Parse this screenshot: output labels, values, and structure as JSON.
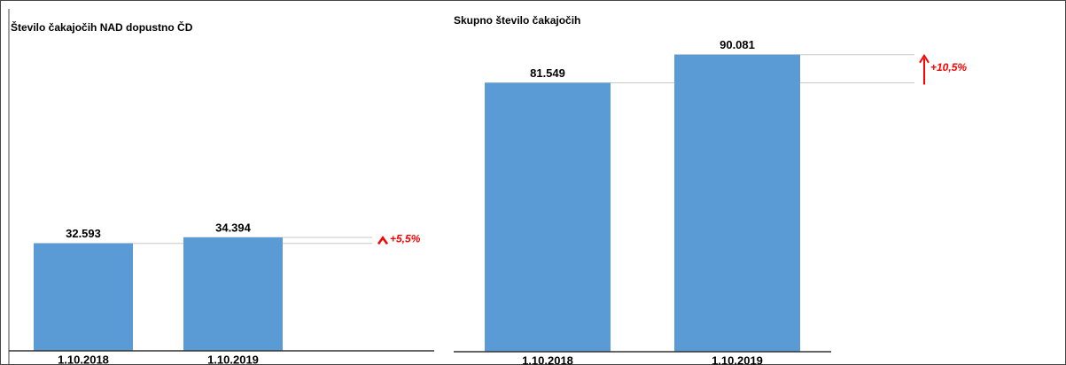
{
  "chart_data": [
    {
      "type": "bar",
      "title": "Število čakajočih NAD dopustno ČD",
      "categories": [
        "1.10.2018",
        "1.10.2019"
      ],
      "values": [
        32593,
        34394
      ],
      "value_labels": [
        "32.593",
        "34.394"
      ],
      "color": "#5b9bd5",
      "annotation": "+5,5%"
    },
    {
      "type": "bar",
      "title": "Skupno število čakajočih",
      "categories": [
        "1.10.2018",
        "1.10.2019"
      ],
      "values": [
        81549,
        90081
      ],
      "value_labels": [
        "81.549",
        "90.081"
      ],
      "color": "#5b9bd5",
      "annotation": "+10,5%"
    }
  ]
}
